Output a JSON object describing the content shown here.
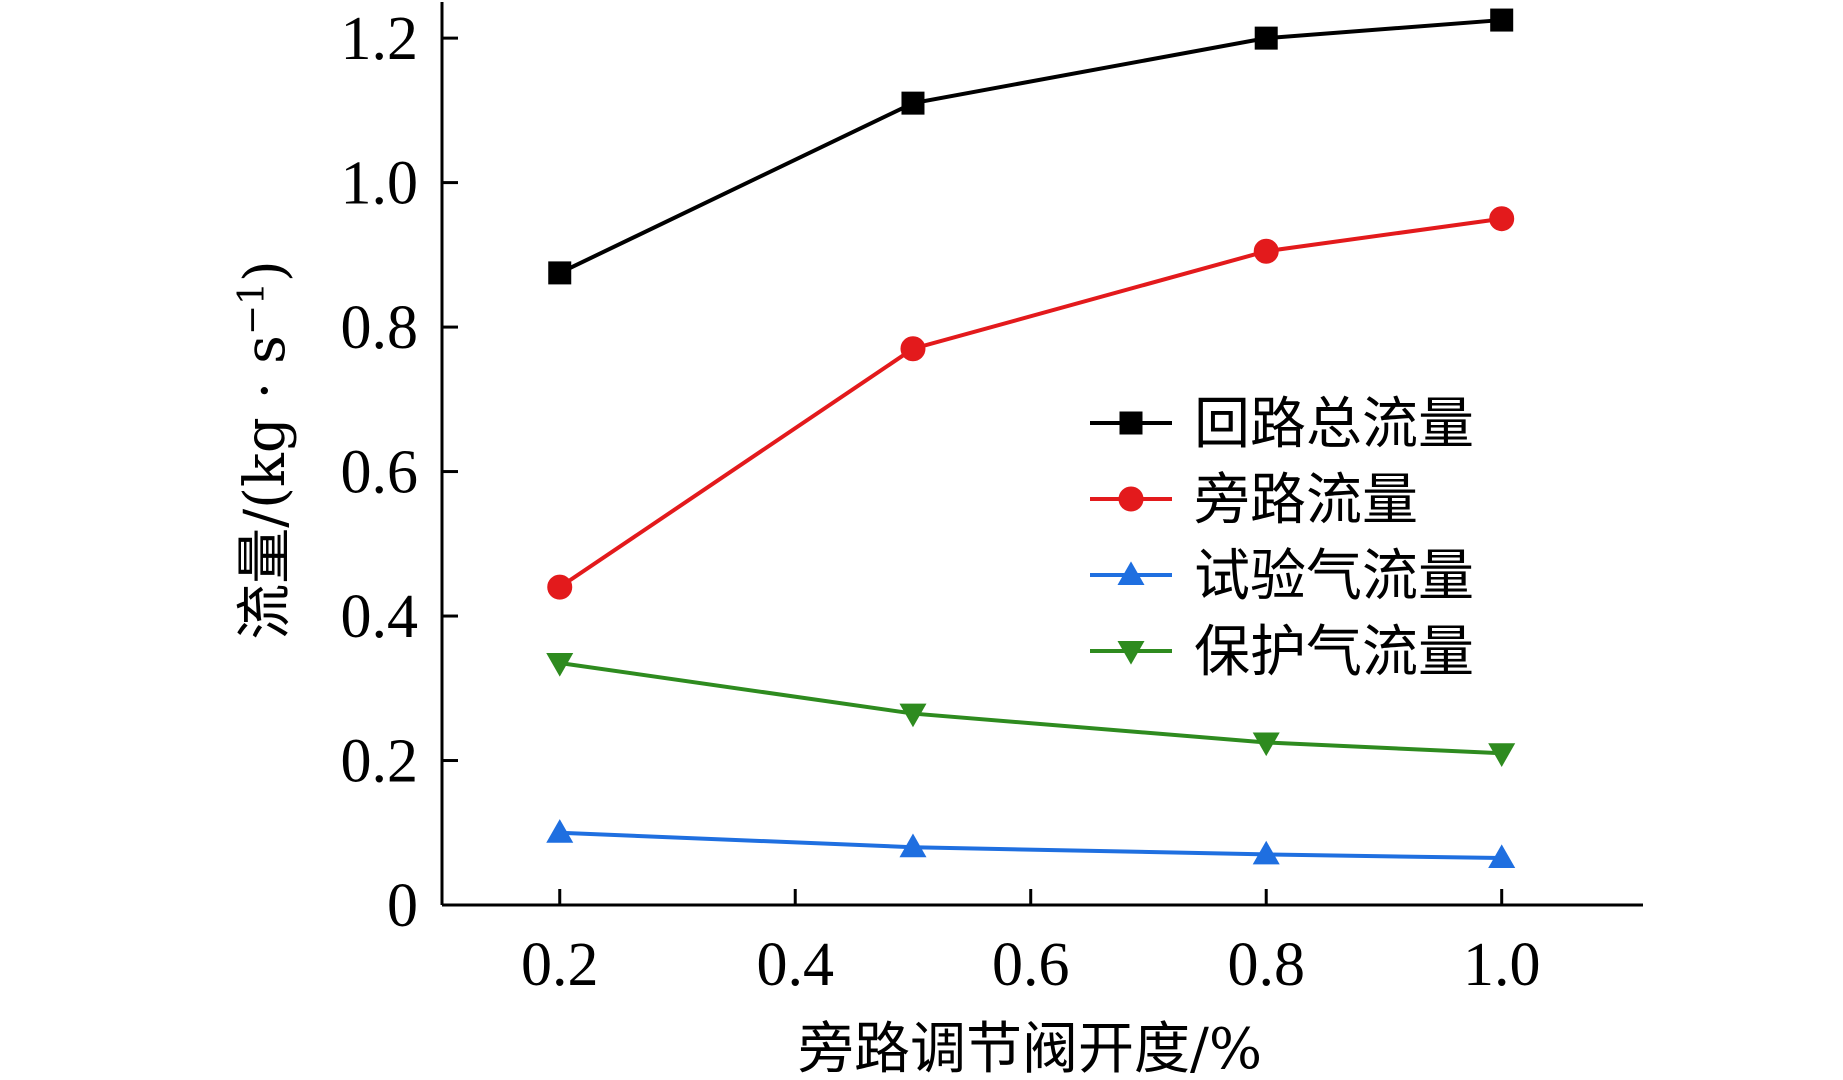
{
  "chart_data": {
    "type": "line",
    "xlabel": "旁路调节阀开度/%",
    "ylabel": "流量/(kg · s",
    "ylabel_sup": "−1",
    "ylabel_close": ")",
    "xlim": [
      0.1,
      1.12
    ],
    "ylim": [
      0,
      1.25
    ],
    "xticks": [
      0.2,
      0.4,
      0.6,
      0.8,
      1.0
    ],
    "xtick_labels": [
      "0.2",
      "0.4",
      "0.6",
      "0.8",
      "1.0"
    ],
    "yticks": [
      0,
      0.2,
      0.4,
      0.6,
      0.8,
      1.0,
      1.2
    ],
    "ytick_labels": [
      "0",
      "0.2",
      "0.4",
      "0.6",
      "0.8",
      "1.0",
      "1.2"
    ],
    "x": [
      0.2,
      0.5,
      0.8,
      1.0
    ],
    "series": [
      {
        "name": "回路总流量",
        "values": [
          0.875,
          1.11,
          1.2,
          1.225
        ],
        "color": "#000000",
        "marker": "square"
      },
      {
        "name": "旁路流量",
        "values": [
          0.44,
          0.77,
          0.905,
          0.95
        ],
        "color": "#e31a1c",
        "marker": "circle"
      },
      {
        "name": "试验气流量",
        "values": [
          0.1,
          0.08,
          0.07,
          0.065
        ],
        "color": "#1f6fe0",
        "marker": "triangle-up"
      },
      {
        "name": "保护气流量",
        "values": [
          0.335,
          0.265,
          0.225,
          0.21
        ],
        "color": "#2e8b1f",
        "marker": "triangle-down"
      }
    ],
    "grid": false,
    "legend_position": "center-right"
  }
}
